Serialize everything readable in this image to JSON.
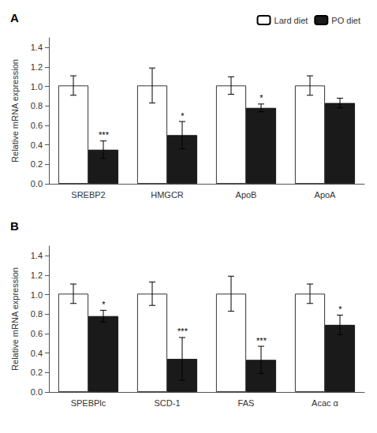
{
  "chart_data": [
    {
      "type": "bar",
      "title": "A",
      "categories": [
        "SREBP2",
        "HMGCR",
        "ApoB",
        "ApoA"
      ],
      "series": [
        {
          "name": "Lard diet",
          "color": "#ffffff",
          "values": [
            1.01,
            1.01,
            1.01,
            1.01
          ],
          "errors": [
            0.1,
            0.18,
            0.09,
            0.1
          ]
        },
        {
          "name": "PO diet",
          "color": "#1a1a1a",
          "values": [
            0.35,
            0.5,
            0.78,
            0.83
          ],
          "errors": [
            0.09,
            0.14,
            0.04,
            0.05
          ]
        }
      ],
      "annotations": [
        {
          "category": "SREBP2",
          "series": "PO diet",
          "text": "***"
        },
        {
          "category": "HMGCR",
          "series": "PO diet",
          "text": "*"
        },
        {
          "category": "ApoB",
          "series": "PO diet",
          "text": "*"
        }
      ],
      "y_label": "Relative mRNA expression",
      "ylim": [
        0,
        1.5
      ],
      "yticks": [
        {
          "value": 0,
          "label": "0.0"
        },
        0.2,
        0.4,
        0.6,
        0.8,
        {
          "value": 1.0,
          "label": "1.0"
        },
        1.2,
        1.4
      ],
      "grid": false,
      "legend": "upper right"
    },
    {
      "type": "bar",
      "title": "B",
      "categories": [
        "SPEBPlc",
        "SCD-1",
        "FAS",
        "Acac α"
      ],
      "series": [
        {
          "name": "Lard diet",
          "color": "#ffffff",
          "values": [
            1.01,
            1.01,
            1.01,
            1.01
          ],
          "errors": [
            0.1,
            0.12,
            0.18,
            0.1
          ]
        },
        {
          "name": "PO diet",
          "color": "#1a1a1a",
          "values": [
            0.78,
            0.34,
            0.33,
            0.69
          ],
          "errors": [
            0.06,
            0.22,
            0.14,
            0.1
          ]
        }
      ],
      "annotations": [
        {
          "category": "SPEBPlc",
          "series": "PO diet",
          "text": "*"
        },
        {
          "category": "SCD-1",
          "series": "PO diet",
          "text": "***"
        },
        {
          "category": "FAS",
          "series": "PO diet",
          "text": "***"
        },
        {
          "category": "Acac α",
          "series": "PO diet",
          "text": "*"
        }
      ],
      "y_label": "Relative mRNA expression",
      "ylim": [
        0,
        1.5
      ],
      "yticks": [
        {
          "value": 0,
          "label": "0.0"
        },
        0.2,
        0.4,
        0.6,
        0.8,
        {
          "value": 1.0,
          "label": "1.0"
        },
        1.2,
        1.4
      ],
      "grid": false
    }
  ]
}
